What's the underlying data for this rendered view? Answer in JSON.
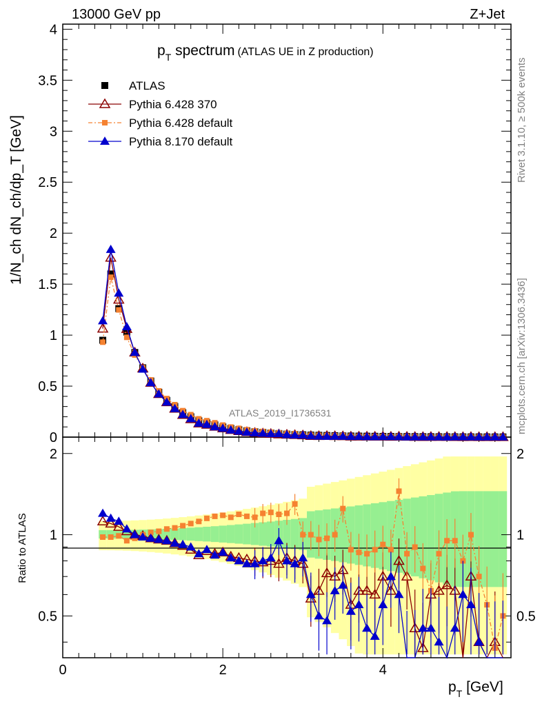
{
  "header": {
    "left": "13000 GeV pp",
    "right": "Z+Jet"
  },
  "side": {
    "rivet": "Rivet 3.1.10, ≥ 500k events",
    "mcplots": "mcplots.cern.ch [arXiv:1306.3436]"
  },
  "main": {
    "title_main": "p",
    "title_sub": "T",
    "title_word": " spectrum",
    "title_note": "(ATLAS UE in Z production)",
    "ylabel": "1/N_ch dN_ch/dp_T [GeV]",
    "analysis": "ATLAS_2019_I1736531",
    "yticks": [
      "0",
      "0.5",
      "1",
      "1.5",
      "2",
      "2.5",
      "3",
      "3.5",
      "4"
    ]
  },
  "ratio": {
    "ylabel": "Ratio to ATLAS",
    "yticks_left": [
      "0.5",
      "1",
      "2"
    ],
    "yticks_right": [
      "0.5",
      "1",
      "2"
    ]
  },
  "xaxis": {
    "label": "p",
    "label_sub": "T",
    "label_unit": " [GeV]",
    "ticks": [
      "0",
      "2",
      "4"
    ]
  },
  "legend": [
    {
      "name": "ATLAS",
      "color": "#000000",
      "marker": "square"
    },
    {
      "name": "Pythia 6.428 370",
      "color": "#8b0000",
      "marker": "open-triangle"
    },
    {
      "name": "Pythia 6.428 default",
      "color": "#f58231",
      "marker": "small-square"
    },
    {
      "name": "Pythia 8.170 default",
      "color": "#0000cd",
      "marker": "filled-triangle"
    }
  ],
  "chart_data": {
    "type": "scatter",
    "title": "pT spectrum (ATLAS UE in Z production)",
    "xlabel": "pT [GeV]",
    "ylabel": "1/Nch dNch/dpT [GeV]",
    "xlim": [
      0,
      5.6
    ],
    "ylim": [
      0,
      4.05
    ],
    "ratio_ylim": [
      0.35,
      2.3
    ],
    "x": [
      0.5,
      0.6,
      0.7,
      0.8,
      0.9,
      1.0,
      1.1,
      1.2,
      1.3,
      1.4,
      1.5,
      1.6,
      1.7,
      1.8,
      1.9,
      2.0,
      2.1,
      2.2,
      2.3,
      2.4,
      2.5,
      2.6,
      2.7,
      2.8,
      2.9,
      3.0,
      3.1,
      3.2,
      3.3,
      3.4,
      3.5,
      3.6,
      3.7,
      3.8,
      3.9,
      4.0,
      4.1,
      4.2,
      4.3,
      4.4,
      4.5,
      4.6,
      4.7,
      4.8,
      4.9,
      5.0,
      5.1,
      5.2,
      5.3,
      5.4,
      5.5
    ],
    "series": [
      {
        "name": "ATLAS",
        "values": [
          0.95,
          1.6,
          1.26,
          1.03,
          0.83,
          0.68,
          0.55,
          0.44,
          0.36,
          0.3,
          0.24,
          0.2,
          0.16,
          0.14,
          0.12,
          0.1,
          0.085,
          0.072,
          0.062,
          0.053,
          0.046,
          0.04,
          0.035,
          0.03,
          0.026,
          0.023,
          0.02,
          0.018,
          0.016,
          0.014,
          0.012,
          0.011,
          0.01,
          0.009,
          0.008,
          0.007,
          0.0065,
          0.006,
          0.0055,
          0.005,
          0.0045,
          0.004,
          0.0037,
          0.0034,
          0.0031,
          0.0028,
          0.0026,
          0.0024,
          0.0022,
          0.002,
          0.0018
        ]
      },
      {
        "name": "Pythia 6.428 370",
        "ratio": [
          1.12,
          1.1,
          1.07,
          1.03,
          1.0,
          0.99,
          0.97,
          0.96,
          0.95,
          0.93,
          0.91,
          0.88,
          0.84,
          0.87,
          0.85,
          0.86,
          0.83,
          0.82,
          0.81,
          0.8,
          0.79,
          0.8,
          0.78,
          0.82,
          0.8,
          0.78,
          0.58,
          0.62,
          0.72,
          0.7,
          0.74,
          0.55,
          0.62,
          0.62,
          0.6,
          0.7,
          0.62,
          0.8,
          0.7,
          0.45,
          0.38,
          0.6,
          0.62,
          0.65,
          0.62,
          0.35,
          0.7,
          0.4,
          0.35,
          0.4,
          0.35
        ]
      },
      {
        "name": "Pythia 6.428 default",
        "ratio": [
          0.98,
          0.98,
          0.99,
          0.95,
          0.97,
          1.0,
          1.02,
          1.03,
          1.05,
          1.06,
          1.08,
          1.1,
          1.12,
          1.15,
          1.17,
          1.18,
          1.16,
          1.19,
          1.17,
          1.16,
          1.2,
          1.21,
          1.19,
          1.2,
          1.3,
          1.0,
          1.0,
          0.96,
          0.97,
          1.0,
          1.25,
          0.88,
          0.86,
          0.85,
          0.88,
          0.92,
          0.88,
          1.45,
          0.85,
          0.9,
          0.75,
          0.62,
          0.85,
          0.95,
          0.95,
          0.8,
          1.0,
          0.7,
          0.55,
          0.38,
          0.5
        ]
      },
      {
        "name": "Pythia 8.170 default",
        "ratio": [
          1.2,
          1.15,
          1.12,
          1.05,
          1.0,
          0.98,
          0.97,
          0.96,
          0.95,
          0.93,
          0.92,
          0.9,
          0.85,
          0.88,
          0.84,
          0.86,
          0.82,
          0.8,
          0.78,
          0.78,
          0.8,
          0.82,
          0.95,
          0.8,
          0.78,
          0.82,
          0.6,
          0.5,
          0.48,
          0.62,
          0.65,
          0.52,
          0.55,
          0.45,
          0.42,
          0.55,
          0.7,
          0.6,
          0.35,
          0.35,
          0.45,
          0.45,
          0.4,
          0.35,
          0.45,
          0.6,
          0.55,
          0.4,
          0.35,
          0.35,
          0.35
        ]
      }
    ]
  }
}
